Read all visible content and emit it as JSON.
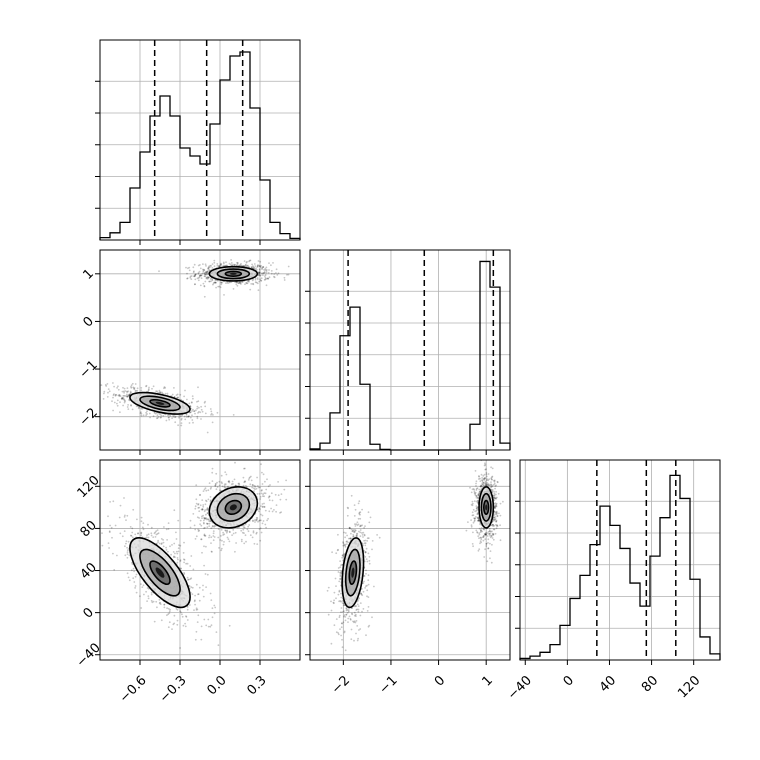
{
  "chart_data": {
    "type": "corner",
    "parameters": [
      {
        "index": 0,
        "range": [
          -0.9,
          0.6
        ],
        "ticks": [
          -0.6,
          -0.3,
          0.0,
          0.3
        ],
        "tick_labels": [
          "−0.6",
          "−0.3",
          "0.0",
          "0.3"
        ]
      },
      {
        "index": 1,
        "range": [
          -2.7,
          1.5
        ],
        "ticks": [
          -2,
          -1,
          0,
          1
        ],
        "tick_labels": [
          "−2",
          "−1",
          "0",
          "1"
        ]
      },
      {
        "index": 2,
        "range": [
          -45,
          145
        ],
        "ticks": [
          -40,
          0,
          40,
          80,
          120
        ],
        "tick_labels": [
          "−40",
          "0",
          "40",
          "80",
          "120"
        ]
      }
    ],
    "histograms": [
      {
        "param": 0,
        "bin_edges": [
          -0.9,
          -0.825,
          -0.75,
          -0.675,
          -0.6,
          -0.525,
          -0.45,
          -0.375,
          -0.3,
          -0.225,
          -0.15,
          -0.075,
          0.0,
          0.075,
          0.15,
          0.225,
          0.3,
          0.375,
          0.45,
          0.525,
          0.6
        ],
        "counts": [
          0.3,
          0.9,
          2.2,
          6.5,
          11.0,
          15.5,
          18.0,
          15.5,
          11.5,
          10.5,
          9.5,
          14.5,
          20.0,
          23.0,
          23.5,
          16.5,
          7.5,
          2.2,
          0.8,
          0.2
        ],
        "max_count": 25,
        "quantiles": [
          -0.49,
          -0.1,
          0.17
        ]
      },
      {
        "param": 1,
        "bin_edges": [
          -2.7,
          -2.49,
          -2.28,
          -2.07,
          -1.86,
          -1.65,
          -1.44,
          -1.23,
          -1.02,
          -0.81,
          -0.6,
          -0.39,
          -0.18,
          0.03,
          0.24,
          0.45,
          0.66,
          0.87,
          1.08,
          1.29,
          1.5
        ],
        "counts": [
          0.2,
          1.2,
          6.5,
          20.0,
          25.0,
          11.5,
          1.0,
          0.1,
          0.0,
          0.0,
          0.0,
          0.0,
          0.0,
          0.0,
          0.0,
          0.0,
          4.5,
          33.0,
          28.5,
          1.2
        ],
        "max_count": 35,
        "quantiles": [
          -1.9,
          -0.3,
          1.15
        ]
      },
      {
        "param": 2,
        "bin_edges": [
          -45,
          -35.5,
          -26,
          -16.5,
          -7,
          2.5,
          12,
          21.5,
          31,
          40.5,
          50,
          59.5,
          69,
          78.5,
          88,
          97.5,
          107,
          116.5,
          126,
          135.5,
          145
        ],
        "counts": [
          0.2,
          0.5,
          1.0,
          2.0,
          4.5,
          8.0,
          11.0,
          15.0,
          20.0,
          17.5,
          14.5,
          10.0,
          7.0,
          13.5,
          18.5,
          24.0,
          21.0,
          10.5,
          3.0,
          0.8
        ],
        "max_count": 26,
        "quantiles": [
          28,
          75,
          103
        ]
      }
    ],
    "panels_2d": [
      {
        "x_param": 0,
        "y_param": 1,
        "modes": [
          {
            "center": [
              0.1,
              1.0
            ],
            "spread": [
              0.12,
              0.1
            ],
            "rho": 0.0,
            "weight": 0.55
          },
          {
            "center": [
              -0.45,
              -1.72
            ],
            "spread": [
              0.15,
              0.15
            ],
            "rho": -0.55,
            "weight": 0.45
          }
        ]
      },
      {
        "x_param": 0,
        "y_param": 2,
        "modes": [
          {
            "center": [
              0.1,
              100.0
            ],
            "spread": [
              0.12,
              13.0
            ],
            "rho": 0.2,
            "weight": 0.55
          },
          {
            "center": [
              -0.45,
              38.0
            ],
            "spread": [
              0.15,
              22.0
            ],
            "rho": -0.7,
            "weight": 0.45
          }
        ]
      },
      {
        "x_param": 1,
        "y_param": 2,
        "modes": [
          {
            "center": [
              1.0,
              100.0
            ],
            "spread": [
              0.1,
              13.0
            ],
            "rho": 0.0,
            "weight": 0.55
          },
          {
            "center": [
              -1.8,
              38.0
            ],
            "spread": [
              0.15,
              22.0
            ],
            "rho": 0.3,
            "weight": 0.45
          }
        ]
      }
    ],
    "contour_levels": [
      0.5,
      1.0,
      1.5
    ],
    "colors": {
      "line": "#000000",
      "grid": "#b0b0b0",
      "sample": "#000000",
      "fill_dark": "#1a1a1a",
      "fill_mid": "#7a7a7a",
      "fill_light": "#c4c4c4"
    },
    "grid": true,
    "n_samples_per_panel": 1500
  }
}
